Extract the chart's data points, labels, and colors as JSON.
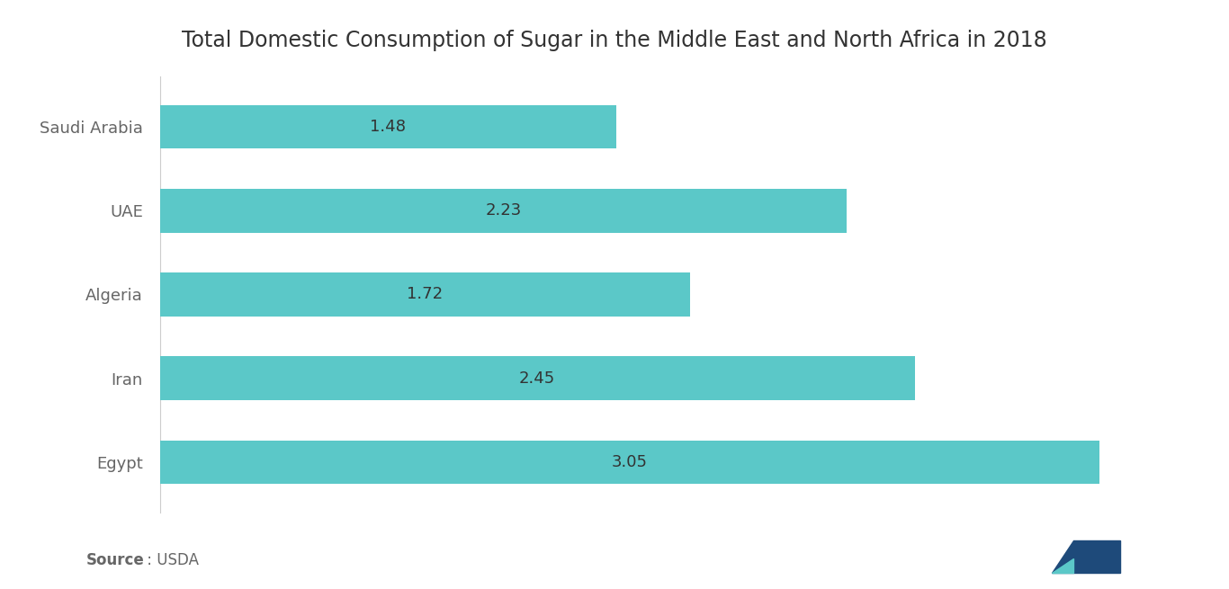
{
  "title": "Total Domestic Consumption of Sugar in the Middle East and North Africa in 2018",
  "categories": [
    "Egypt",
    "Iran",
    "Algeria",
    "UAE",
    "Saudi Arabia"
  ],
  "values": [
    3.05,
    2.45,
    1.72,
    2.23,
    1.48
  ],
  "bar_color": "#5bc8c8",
  "value_labels": [
    "3.05",
    "2.45",
    "1.72",
    "2.23",
    "1.48"
  ],
  "source_bold": "Source",
  "source_normal": " : USDA",
  "xlim": [
    0,
    3.35
  ],
  "title_fontsize": 17,
  "label_fontsize": 13,
  "value_fontsize": 13,
  "source_fontsize": 12,
  "background_color": "#ffffff",
  "text_color": "#666666",
  "bar_edge_color": "none",
  "title_color": "#333333",
  "logo_dark": "#1e4a7a",
  "logo_teal": "#5bc8c8"
}
